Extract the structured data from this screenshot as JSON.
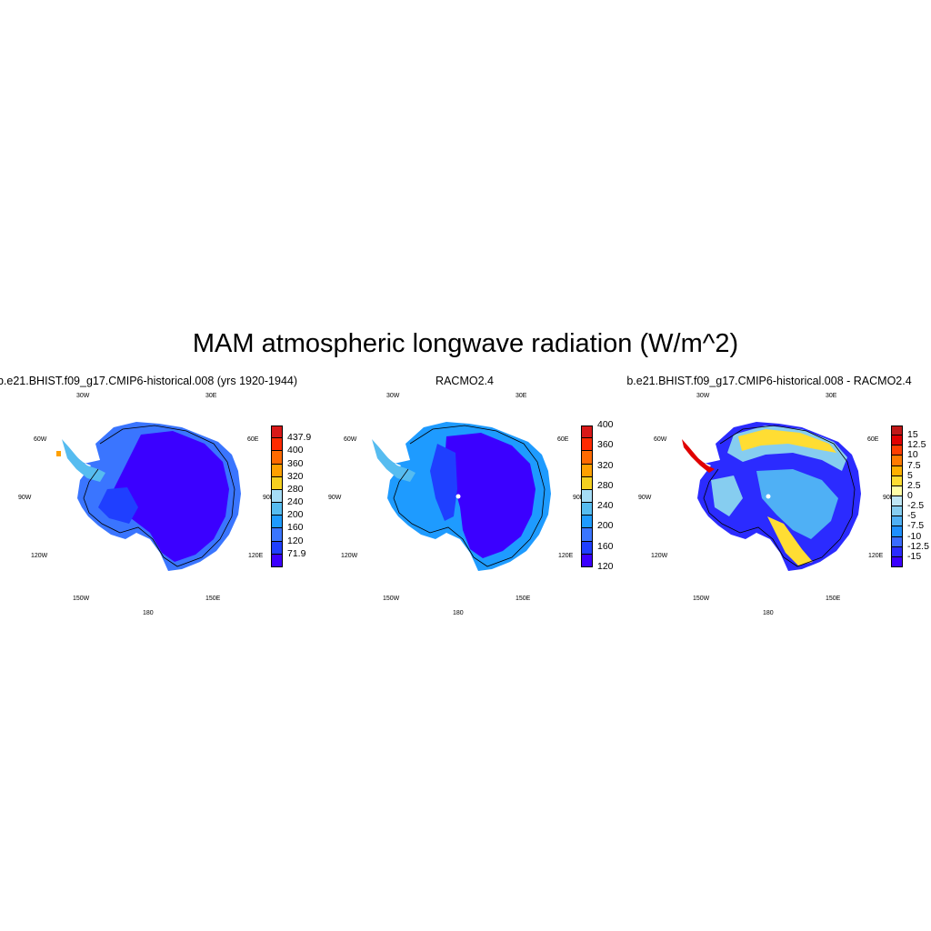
{
  "title": "MAM atmospheric longwave radiation (W/m^2)",
  "longitude_labels": {
    "w30": "30W",
    "e30": "30E",
    "w60": "60W",
    "e60": "60E",
    "w90": "90W",
    "e90": "90E",
    "w120": "120W",
    "e120": "120E",
    "w150": "150W",
    "e150": "150E",
    "s180": "180"
  },
  "panels": [
    {
      "title": "b.e21.BHIST.f09_g17.CMIP6-historical.008 (yrs 1920-1944)",
      "colorbar": {
        "colors": [
          "#3b00ff",
          "#1f3fff",
          "#3a75ff",
          "#1e9bff",
          "#56bcf0",
          "#a5dcf5",
          "#f5d020",
          "#ffa000",
          "#ff6a00",
          "#ff2a00",
          "#d81818"
        ],
        "labels": [
          "71.9",
          "120",
          "160",
          "200",
          "240",
          "280",
          "320",
          "360",
          "400",
          "437.9"
        ]
      }
    },
    {
      "title": "RACMO2.4",
      "colorbar": {
        "colors": [
          "#3b00ff",
          "#1f3fff",
          "#3a75ff",
          "#1e9bff",
          "#56bcf0",
          "#a5dcf5",
          "#f5d020",
          "#ffa000",
          "#ff6a00",
          "#ff2a00",
          "#d81818"
        ],
        "labels": [
          "120",
          "160",
          "200",
          "240",
          "280",
          "320",
          "360",
          "400"
        ]
      }
    },
    {
      "title": "b.e21.BHIST.f09_g17.CMIP6-historical.008 - RACMO2.4",
      "colorbar": {
        "colors": [
          "#3b00ff",
          "#2b2bff",
          "#3a6bff",
          "#1e8fff",
          "#4fb0f5",
          "#86cdf0",
          "#bfe6f5",
          "#ffffa8",
          "#ffdd33",
          "#ffb000",
          "#ff7a00",
          "#ff3d00",
          "#e00000",
          "#c01818"
        ],
        "labels": [
          "-15",
          "-12.5",
          "-10",
          "-7.5",
          "-5",
          "-2.5",
          "0",
          "2.5",
          "5",
          "7.5",
          "10",
          "12.5",
          "15"
        ]
      }
    }
  ]
}
